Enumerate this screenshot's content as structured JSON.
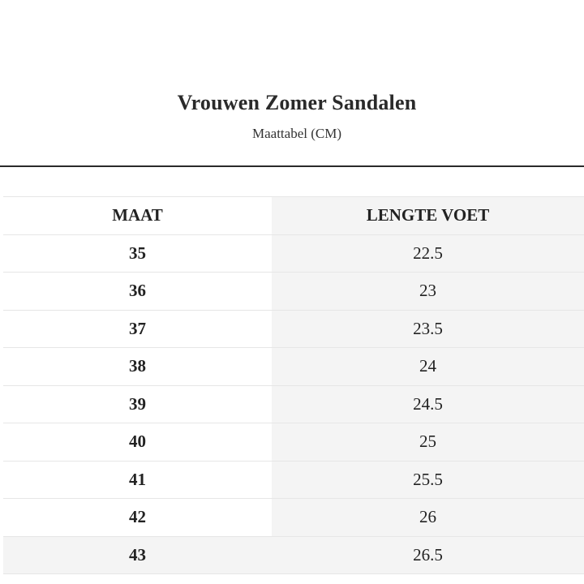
{
  "header": {
    "title": "Vrouwen Zomer Sandalen",
    "subtitle": "Maattabel (CM)"
  },
  "table": {
    "columns": [
      "MAAT",
      "LENGTE VOET"
    ],
    "rows": [
      [
        "35",
        "22.5"
      ],
      [
        "36",
        "23"
      ],
      [
        "37",
        "23.5"
      ],
      [
        "38",
        "24"
      ],
      [
        "39",
        "24.5"
      ],
      [
        "40",
        "25"
      ],
      [
        "41",
        "25.5"
      ],
      [
        "42",
        "26"
      ],
      [
        "43",
        "26.5"
      ]
    ]
  }
}
